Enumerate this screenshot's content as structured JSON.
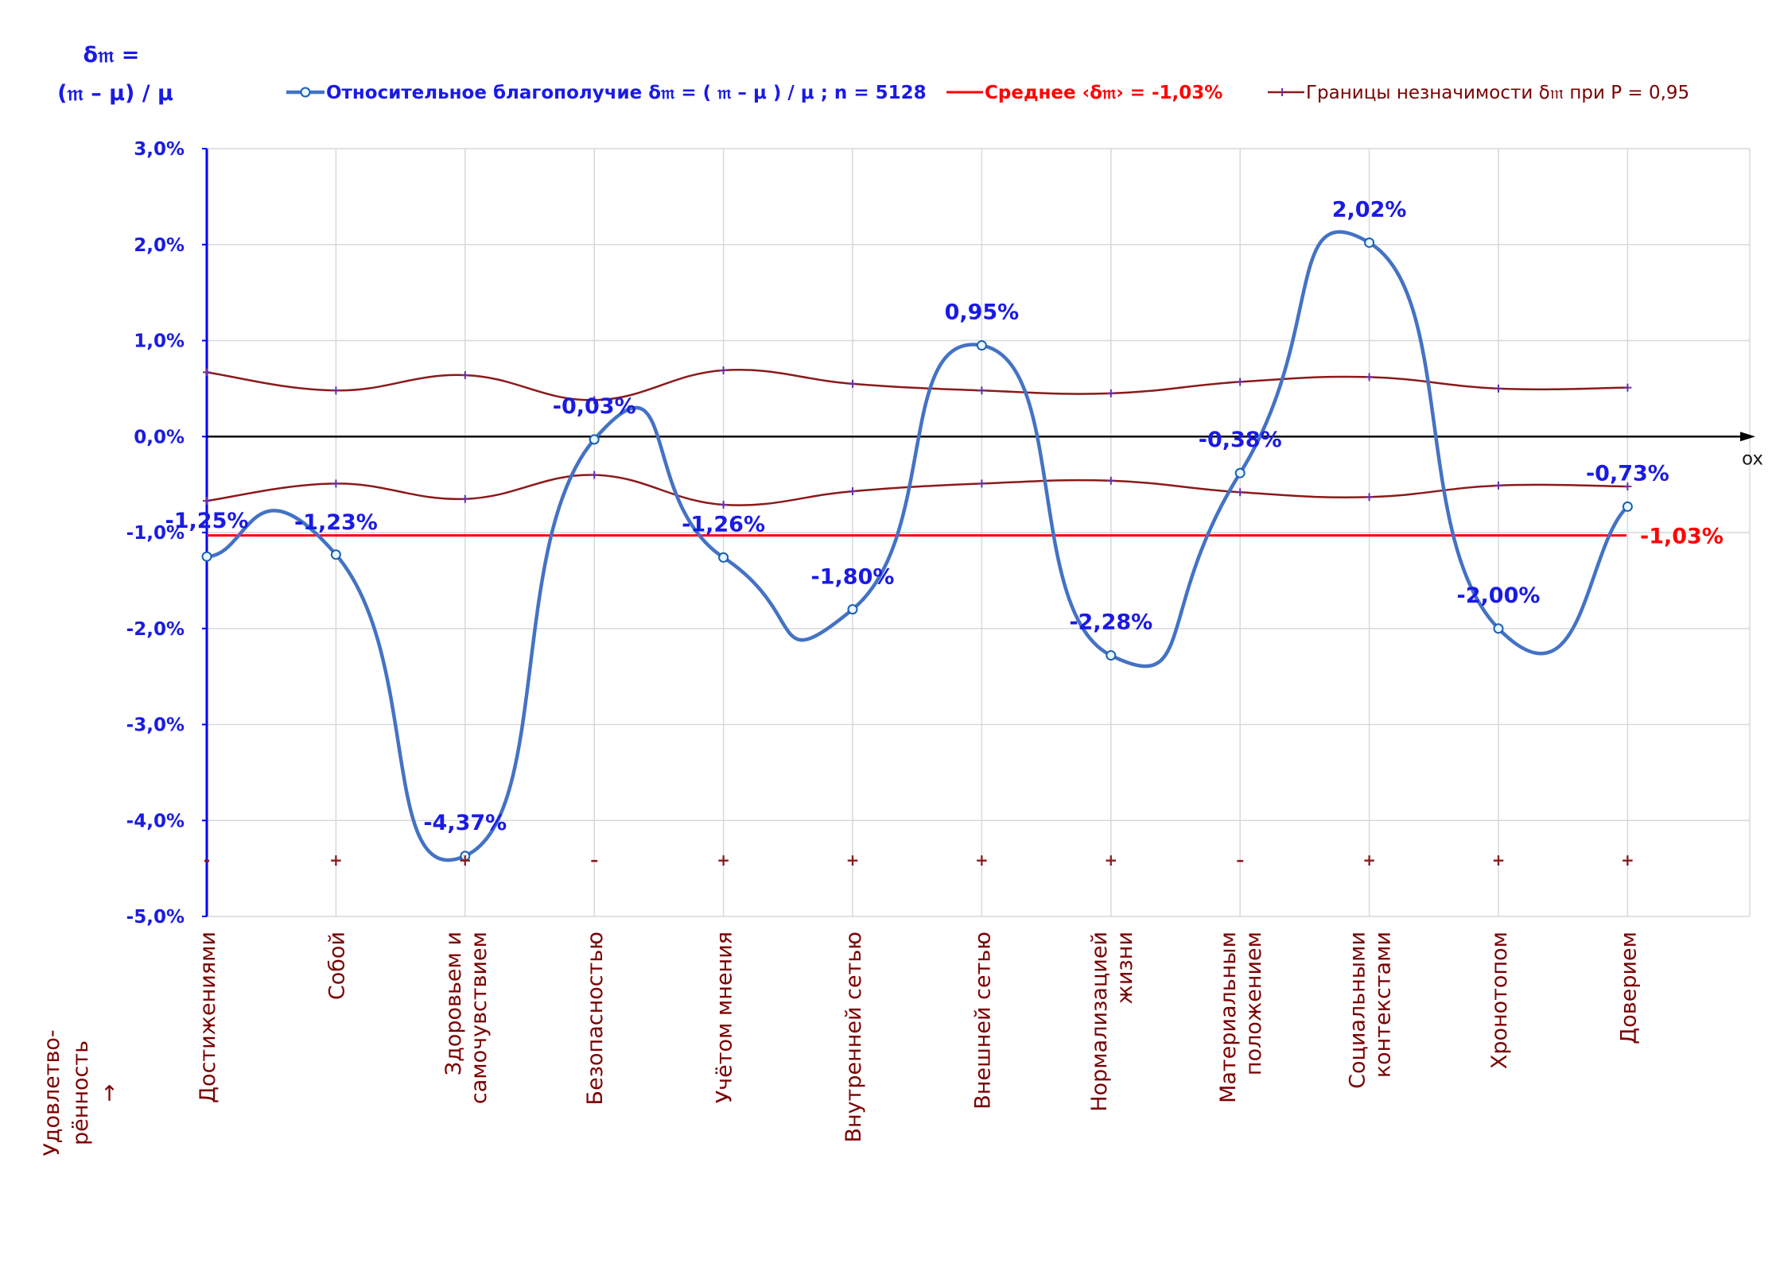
{
  "chart_data": {
    "type": "line",
    "ylabel_line1": "δ𝔪 =",
    "ylabel_line2": "(𝔪 – μ) / μ",
    "xlabel": "Удовлетво-\nрённость\n→",
    "x_axis_end_label": "ox",
    "ylim": [
      -5.0,
      3.0
    ],
    "yticks": [
      3.0,
      2.0,
      1.0,
      0.0,
      -1.0,
      -2.0,
      -3.0,
      -4.0,
      -5.0
    ],
    "ytick_labels": [
      "3,0%",
      "2,0%",
      "1,0%",
      "0,0%",
      "-1,0%",
      "-2,0%",
      "-3,0%",
      "-4,0%",
      "-5,0%"
    ],
    "categories": [
      "Достижениями",
      "Собой",
      "Здоровьем и\nсамочувствием",
      "Безопасностью",
      "Учётом мнения",
      "Внутренней сетью",
      "Внешней сетью",
      "Нормализацией\nжизни",
      "Материальным\nположением",
      "Социальными\nконтекстами",
      "Хронотопом",
      "Доверием"
    ],
    "series": [
      {
        "name": "Относительное благополучие δ𝔪 = ( 𝔪 – μ ) / μ ; n = 5128",
        "color": "#4472c4",
        "values": [
          -1.25,
          -1.23,
          -4.37,
          -0.03,
          -1.26,
          -1.8,
          0.95,
          -2.28,
          -0.38,
          2.02,
          -2.0,
          -0.73
        ],
        "data_labels": [
          "-1,25%",
          "-1,23%",
          "-4,37%",
          "-0,03%",
          "-1,26%",
          "-1,80%",
          "0,95%",
          "-2,28%",
          "-0,38%",
          "2,02%",
          "-2,00%",
          "-0,73%"
        ]
      },
      {
        "name": "Среднее ‹δ𝔪› = -1,03%",
        "color": "#ff0000",
        "value": -1.03,
        "value_label": "-1,03%"
      },
      {
        "name": "Границы незначимости δ𝔪 при P = 0,95",
        "color": "#8b1a1a",
        "upper": [
          0.67,
          0.48,
          0.64,
          0.38,
          0.69,
          0.55,
          0.48,
          0.45,
          0.57,
          0.62,
          0.5,
          0.51
        ],
        "lower": [
          -0.67,
          -0.49,
          -0.65,
          -0.4,
          -0.71,
          -0.57,
          -0.49,
          -0.46,
          -0.58,
          -0.63,
          -0.51,
          -0.52
        ]
      }
    ],
    "markers_bottom": [
      "-",
      "+",
      "+",
      "–",
      "+",
      "+",
      "+",
      "+",
      "–",
      "+",
      "+",
      "+"
    ],
    "grid": true,
    "legend_position": "top"
  },
  "colors": {
    "axis": "#0000ff",
    "zero_axis": "#000000",
    "grid": "#d9d9d9",
    "category_text": "#7a0000",
    "marker_bottom": "#8b1a1a"
  }
}
